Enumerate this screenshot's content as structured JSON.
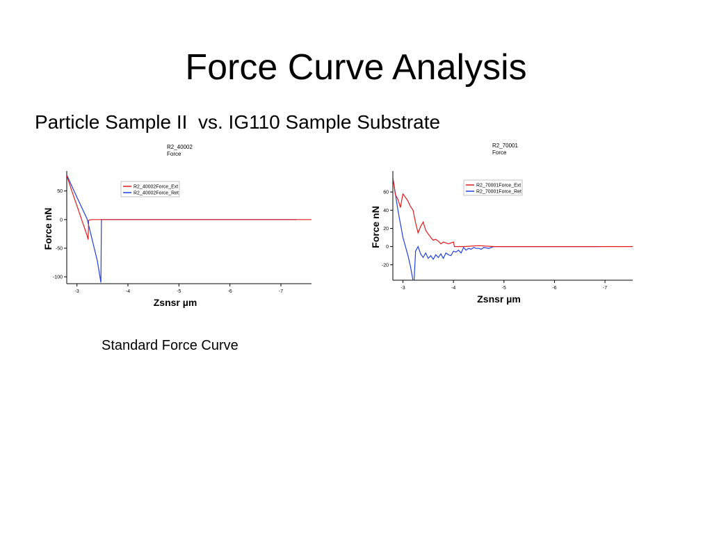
{
  "slide": {
    "title": "Force Curve Analysis",
    "subtitle": "Particle Sample II  vs. IG110 Sample Substrate",
    "caption": "Standard Force Curve"
  },
  "colors": {
    "ext": "#e41a1c",
    "ret": "#1f3fe0"
  },
  "chart_data": [
    {
      "type": "line",
      "title": "R2_40002",
      "subtitle": "Force",
      "xlabel": "Zsnsr µm",
      "ylabel": "Force nN",
      "xlim": [
        -2.8,
        -7.6
      ],
      "ylim": [
        -112,
        80
      ],
      "xticks": [
        -3,
        -4,
        -5,
        -6,
        -7
      ],
      "yticks": [
        50,
        0,
        -50,
        -100
      ],
      "legend_position": "top-center",
      "grid": false,
      "series": [
        {
          "name": "R2_40002Force_Ext",
          "color": "#e41a1c",
          "points": [
            [
              -2.8,
              77
            ],
            [
              -2.9,
              50
            ],
            [
              -3.0,
              24
            ],
            [
              -3.1,
              -2
            ],
            [
              -3.2,
              -28
            ],
            [
              -3.22,
              -35
            ],
            [
              -3.23,
              -1
            ],
            [
              -3.3,
              0
            ],
            [
              -3.4,
              0
            ],
            [
              -4.0,
              0
            ],
            [
              -5.0,
              0
            ],
            [
              -6.0,
              0
            ],
            [
              -7.0,
              0
            ],
            [
              -7.6,
              0
            ]
          ]
        },
        {
          "name": "R2_40002Force_Ret",
          "color": "#1f3fe0",
          "points": [
            [
              -2.8,
              78
            ],
            [
              -3.0,
              39
            ],
            [
              -3.2,
              1
            ],
            [
              -3.4,
              -72
            ],
            [
              -3.47,
              -110
            ],
            [
              -3.48,
              0
            ],
            [
              -3.6,
              0
            ],
            [
              -4.0,
              0
            ],
            [
              -5.0,
              0
            ],
            [
              -6.0,
              0
            ],
            [
              -7.0,
              0
            ],
            [
              -7.3,
              0
            ]
          ]
        }
      ]
    },
    {
      "type": "line",
      "title": "R2_70001",
      "subtitle": "Force",
      "xlabel": "Zsnsr µm",
      "ylabel": "Force nN",
      "xlim": [
        -2.8,
        -7.55
      ],
      "ylim": [
        -37,
        80
      ],
      "xticks": [
        -3,
        -4,
        -5,
        -6,
        -7
      ],
      "yticks": [
        60,
        40,
        20,
        0,
        -20
      ],
      "legend_position": "top-right",
      "grid": false,
      "series": [
        {
          "name": "R2_70001Force_Ext",
          "color": "#e41a1c",
          "points": [
            [
              -2.8,
              76
            ],
            [
              -2.85,
              57
            ],
            [
              -2.9,
              52
            ],
            [
              -2.95,
              43
            ],
            [
              -3.0,
              58
            ],
            [
              -3.05,
              54
            ],
            [
              -3.1,
              50
            ],
            [
              -3.15,
              44
            ],
            [
              -3.2,
              40
            ],
            [
              -3.25,
              26
            ],
            [
              -3.3,
              15
            ],
            [
              -3.35,
              22
            ],
            [
              -3.4,
              27
            ],
            [
              -3.45,
              18
            ],
            [
              -3.5,
              14
            ],
            [
              -3.55,
              10
            ],
            [
              -3.6,
              7
            ],
            [
              -3.65,
              8
            ],
            [
              -3.7,
              6
            ],
            [
              -3.75,
              3
            ],
            [
              -3.8,
              5
            ],
            [
              -3.9,
              3
            ],
            [
              -4.0,
              5
            ],
            [
              -4.02,
              0
            ],
            [
              -4.2,
              0
            ],
            [
              -4.5,
              1
            ],
            [
              -4.8,
              0
            ],
            [
              -5.0,
              0
            ],
            [
              -5.5,
              0
            ],
            [
              -6.0,
              0
            ],
            [
              -6.5,
              0
            ],
            [
              -7.0,
              0
            ],
            [
              -7.55,
              0
            ]
          ]
        },
        {
          "name": "R2_70001Force_Ret",
          "color": "#1f3fe0",
          "points": [
            [
              -2.8,
              76
            ],
            [
              -2.9,
              40
            ],
            [
              -3.0,
              10
            ],
            [
              -3.1,
              -10
            ],
            [
              -3.15,
              -22
            ],
            [
              -3.2,
              -38
            ],
            [
              -3.22,
              -38
            ],
            [
              -3.25,
              -5
            ],
            [
              -3.28,
              -2
            ],
            [
              -3.3,
              0
            ],
            [
              -3.35,
              -8
            ],
            [
              -3.4,
              -12
            ],
            [
              -3.45,
              -7
            ],
            [
              -3.5,
              -13
            ],
            [
              -3.55,
              -10
            ],
            [
              -3.6,
              -14
            ],
            [
              -3.65,
              -9
            ],
            [
              -3.7,
              -12
            ],
            [
              -3.75,
              -8
            ],
            [
              -3.8,
              -13
            ],
            [
              -3.85,
              -7
            ],
            [
              -3.9,
              -9
            ],
            [
              -3.95,
              -10
            ],
            [
              -4.0,
              -5
            ],
            [
              -4.05,
              -6
            ],
            [
              -4.1,
              -4
            ],
            [
              -4.15,
              -7
            ],
            [
              -4.2,
              -1
            ],
            [
              -4.25,
              -4
            ],
            [
              -4.3,
              -2
            ],
            [
              -4.35,
              -3
            ],
            [
              -4.4,
              -1
            ],
            [
              -4.45,
              -2
            ],
            [
              -4.5,
              -2
            ],
            [
              -4.55,
              -3
            ],
            [
              -4.6,
              -1
            ],
            [
              -4.7,
              -2
            ],
            [
              -4.75,
              -1
            ],
            [
              -4.8,
              0
            ],
            [
              -5.0,
              0
            ],
            [
              -5.5,
              0
            ],
            [
              -6.0,
              0
            ],
            [
              -6.5,
              0
            ],
            [
              -6.9,
              0
            ]
          ]
        }
      ]
    }
  ]
}
